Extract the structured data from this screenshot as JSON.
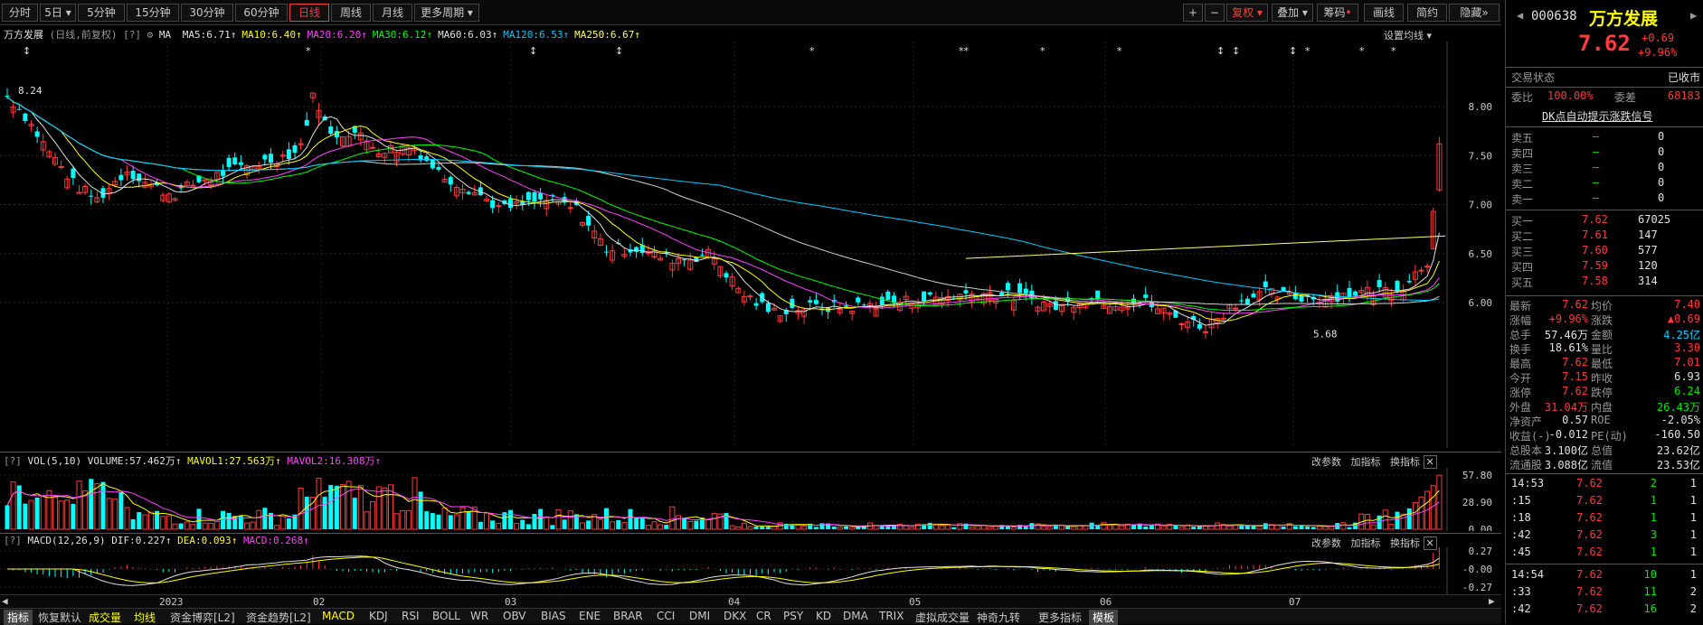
{
  "toolbar": {
    "periods": [
      "分时",
      "5日",
      "5分钟",
      "15分钟",
      "30分钟",
      "60分钟",
      "日线",
      "周线",
      "月线",
      "更多周期"
    ],
    "active_period": "日线",
    "right_buttons": [
      "复权",
      "叠加",
      "筹码",
      "画线",
      "简约",
      "隐藏"
    ]
  },
  "main_chart": {
    "stock_name": "万方发展",
    "mode": "(日线,前复权)",
    "ma_label": "MA",
    "ma_values": [
      {
        "text": "MA5:6.71",
        "color": "#e0e0e0"
      },
      {
        "text": "MA10:6.40",
        "color": "#ffff00"
      },
      {
        "text": "MA20:6.20",
        "color": "#ff44ff"
      },
      {
        "text": "MA30:6.12",
        "color": "#00ff00"
      },
      {
        "text": "MA60:6.03",
        "color": "#e0e0e0"
      },
      {
        "text": "MA120:6.53",
        "color": "#00ccff"
      },
      {
        "text": "MA250:6.67",
        "color": "#ffff66"
      }
    ],
    "settings_link": "设置均线",
    "y_ticks": [
      "8.00",
      "7.50",
      "7.00",
      "6.50",
      "6.00"
    ],
    "high_marker": "8.24",
    "low_marker": "5.68",
    "x_ticks": [
      "2023",
      "02",
      "03",
      "04",
      "05",
      "06",
      "07"
    ]
  },
  "vol_chart": {
    "title": "VOL(5,10)",
    "volume": "VOLUME:57.462万",
    "mavol1": "MAVOL1:27.563万",
    "mavol2": "MAVOL2:16.308万",
    "links": [
      "改参数",
      "加指标",
      "换指标"
    ],
    "y_ticks": [
      "57.80",
      "28.90",
      "0.00"
    ]
  },
  "macd_chart": {
    "title": "MACD(12,26,9)",
    "dif": "DIF:0.227",
    "dea": "DEA:0.093",
    "macd": "MACD:0.268",
    "links": [
      "改参数",
      "加指标",
      "换指标"
    ],
    "y_ticks": [
      "0.27",
      "-0.00",
      "-0.27"
    ]
  },
  "bottom_tabs": [
    "指标",
    "恢复默认",
    "成交量",
    "均线",
    "资金博弈[L2]",
    "资金趋势[L2]",
    "MACD",
    "KDJ",
    "RSI",
    "BOLL",
    "WR",
    "OBV",
    "BIAS",
    "ENE",
    "BRAR",
    "CCI",
    "DMI",
    "DKX",
    "CR",
    "PSY",
    "KD",
    "DMA",
    "TRIX",
    "虚拟成交量",
    "神奇九转",
    "更多指标",
    "模板"
  ],
  "panel": {
    "code": "000638",
    "name": "万方发展",
    "price": "7.62",
    "change": "+0.69",
    "change_pct": "+9.96%",
    "trade_status_label": "交易状态",
    "trade_status": "已收市",
    "wb_label": "委比",
    "wb_value": "100.00%",
    "wc_label": "委差",
    "wc_value": "68183",
    "dk_link": "DK点自动提示涨跌信号",
    "asks": [
      {
        "label": "卖五",
        "price": "—",
        "vol": "0"
      },
      {
        "label": "卖四",
        "price": "—",
        "vol": "0"
      },
      {
        "label": "卖三",
        "price": "—",
        "vol": "0"
      },
      {
        "label": "卖二",
        "price": "—",
        "vol": "0"
      },
      {
        "label": "卖一",
        "price": "—",
        "vol": "0"
      }
    ],
    "bids": [
      {
        "label": "买一",
        "price": "7.62",
        "vol": "67025"
      },
      {
        "label": "买二",
        "price": "7.61",
        "vol": "147"
      },
      {
        "label": "买三",
        "price": "7.60",
        "vol": "577"
      },
      {
        "label": "买四",
        "price": "7.59",
        "vol": "120"
      },
      {
        "label": "买五",
        "price": "7.58",
        "vol": "314"
      }
    ],
    "stats": [
      {
        "l1": "最新",
        "v1": "7.62",
        "c1": "red",
        "l2": "均价",
        "v2": "7.40",
        "c2": "red"
      },
      {
        "l1": "涨幅",
        "v1": "+9.96%",
        "c1": "red",
        "l2": "涨跌",
        "v2": "▲0.69",
        "c2": "red"
      },
      {
        "l1": "总手",
        "v1": "57.46万",
        "c1": "wh",
        "l2": "金额",
        "v2": "4.25亿",
        "c2": "cy"
      },
      {
        "l1": "换手",
        "v1": "18.61%",
        "c1": "wh",
        "l2": "量比",
        "v2": "3.30",
        "c2": "red"
      },
      {
        "l1": "最高",
        "v1": "7.62",
        "c1": "red",
        "l2": "最低",
        "v2": "7.01",
        "c2": "red"
      },
      {
        "l1": "今开",
        "v1": "7.15",
        "c1": "red",
        "l2": "昨收",
        "v2": "6.93",
        "c2": "wh"
      },
      {
        "l1": "涨停",
        "v1": "7.62",
        "c1": "red",
        "l2": "跌停",
        "v2": "6.24",
        "c2": "green"
      },
      {
        "l1": "外盘",
        "v1": "31.04万",
        "c1": "red",
        "l2": "内盘",
        "v2": "26.43万",
        "c2": "green"
      },
      {
        "l1": "净资产",
        "v1": "0.57",
        "c1": "wh",
        "l2": "ROE",
        "v2": "-2.05%",
        "c2": "wh"
      },
      {
        "l1": "收益(-)",
        "v1": "-0.012",
        "c1": "wh",
        "l2": "PE(动)",
        "v2": "-160.50",
        "c2": "wh"
      },
      {
        "l1": "总股本",
        "v1": "3.100亿",
        "c1": "wh",
        "l2": "总值",
        "v2": "23.62亿",
        "c2": "wh"
      },
      {
        "l1": "流通股",
        "v1": "3.088亿",
        "c1": "wh",
        "l2": "流值",
        "v2": "23.53亿",
        "c2": "wh"
      }
    ],
    "ticks": [
      {
        "time": "14:53",
        "price": "7.62",
        "vol": "2",
        "n": "1"
      },
      {
        "time": ":15",
        "price": "7.62",
        "vol": "1",
        "n": "1"
      },
      {
        "time": ":18",
        "price": "7.62",
        "vol": "1",
        "n": "1"
      },
      {
        "time": ":42",
        "price": "7.62",
        "vol": "3",
        "n": "1"
      },
      {
        "time": ":45",
        "price": "7.62",
        "vol": "1",
        "n": "1"
      },
      {
        "time": "14:54",
        "price": "7.62",
        "vol": "10",
        "n": "1"
      },
      {
        "time": ":33",
        "price": "7.62",
        "vol": "11",
        "n": "2"
      },
      {
        "time": ":42",
        "price": "7.62",
        "vol": "16",
        "n": "2"
      }
    ]
  }
}
